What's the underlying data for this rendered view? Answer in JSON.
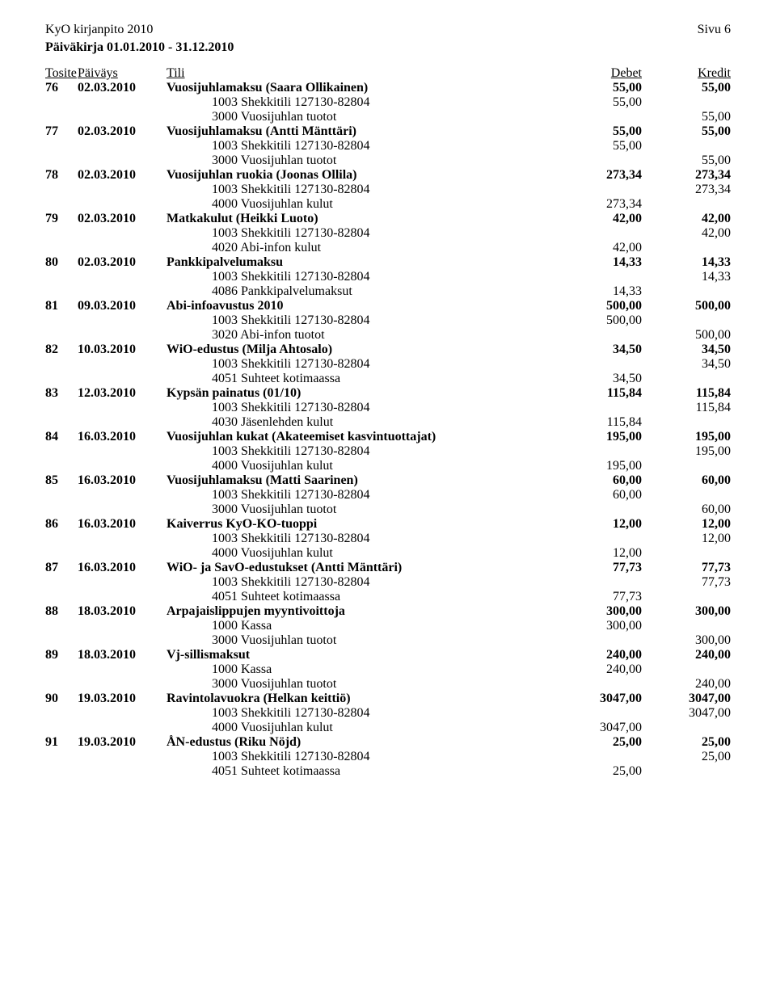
{
  "header": {
    "title_left": "KyO kirjanpito 2010",
    "title_right": "Sivu 6",
    "subtitle": "Päiväkirja 01.01.2010 - 31.12.2010"
  },
  "columns": {
    "tosite": "Tosite",
    "paivays": "Päiväys",
    "tili": "Tili",
    "debet": "Debet",
    "kredit": "Kredit"
  },
  "entries": [
    {
      "num": "76",
      "date": "02.03.2010",
      "desc": "Vuosijuhlamaksu (Saara Ollikainen)",
      "deb": "55,00",
      "cre": "55,00",
      "subs": [
        {
          "desc": "1003 Shekkitili 127130-82804",
          "deb": "55,00",
          "cre": ""
        },
        {
          "desc": "3000 Vuosijuhlan tuotot",
          "deb": "",
          "cre": "55,00"
        }
      ]
    },
    {
      "num": "77",
      "date": "02.03.2010",
      "desc": "Vuosijuhlamaksu (Antti Mänttäri)",
      "deb": "55,00",
      "cre": "55,00",
      "subs": [
        {
          "desc": "1003 Shekkitili 127130-82804",
          "deb": "55,00",
          "cre": ""
        },
        {
          "desc": "3000 Vuosijuhlan tuotot",
          "deb": "",
          "cre": "55,00"
        }
      ]
    },
    {
      "num": "78",
      "date": "02.03.2010",
      "desc": "Vuosijuhlan ruokia (Joonas Ollila)",
      "deb": "273,34",
      "cre": "273,34",
      "subs": [
        {
          "desc": "1003 Shekkitili 127130-82804",
          "deb": "",
          "cre": "273,34"
        },
        {
          "desc": "4000 Vuosijuhlan kulut",
          "deb": "273,34",
          "cre": ""
        }
      ]
    },
    {
      "num": "79",
      "date": "02.03.2010",
      "desc": "Matkakulut (Heikki Luoto)",
      "deb": "42,00",
      "cre": "42,00",
      "subs": [
        {
          "desc": "1003 Shekkitili 127130-82804",
          "deb": "",
          "cre": "42,00"
        },
        {
          "desc": "4020 Abi-infon kulut",
          "deb": "42,00",
          "cre": ""
        }
      ]
    },
    {
      "num": "80",
      "date": "02.03.2010",
      "desc": "Pankkipalvelumaksu",
      "deb": "14,33",
      "cre": "14,33",
      "subs": [
        {
          "desc": "1003 Shekkitili 127130-82804",
          "deb": "",
          "cre": "14,33"
        },
        {
          "desc": "4086 Pankkipalvelumaksut",
          "deb": "14,33",
          "cre": ""
        }
      ]
    },
    {
      "num": "81",
      "date": "09.03.2010",
      "desc": "Abi-infoavustus 2010",
      "deb": "500,00",
      "cre": "500,00",
      "subs": [
        {
          "desc": "1003 Shekkitili 127130-82804",
          "deb": "500,00",
          "cre": ""
        },
        {
          "desc": "3020 Abi-infon tuotot",
          "deb": "",
          "cre": "500,00"
        }
      ]
    },
    {
      "num": "82",
      "date": "10.03.2010",
      "desc": "WiO-edustus (Milja Ahtosalo)",
      "deb": "34,50",
      "cre": "34,50",
      "subs": [
        {
          "desc": "1003 Shekkitili 127130-82804",
          "deb": "",
          "cre": "34,50"
        },
        {
          "desc": "4051 Suhteet kotimaassa",
          "deb": "34,50",
          "cre": ""
        }
      ]
    },
    {
      "num": "83",
      "date": "12.03.2010",
      "desc": "Kypsän painatus (01/10)",
      "deb": "115,84",
      "cre": "115,84",
      "subs": [
        {
          "desc": "1003 Shekkitili 127130-82804",
          "deb": "",
          "cre": "115,84"
        },
        {
          "desc": "4030 Jäsenlehden kulut",
          "deb": "115,84",
          "cre": ""
        }
      ]
    },
    {
      "num": "84",
      "date": "16.03.2010",
      "desc": "Vuosijuhlan kukat (Akateemiset kasvintuottajat)",
      "deb": "195,00",
      "cre": "195,00",
      "subs": [
        {
          "desc": "1003 Shekkitili 127130-82804",
          "deb": "",
          "cre": "195,00"
        },
        {
          "desc": "4000 Vuosijuhlan kulut",
          "deb": "195,00",
          "cre": ""
        }
      ]
    },
    {
      "num": "85",
      "date": "16.03.2010",
      "desc": "Vuosijuhlamaksu (Matti Saarinen)",
      "deb": "60,00",
      "cre": "60,00",
      "subs": [
        {
          "desc": "1003 Shekkitili 127130-82804",
          "deb": "60,00",
          "cre": ""
        },
        {
          "desc": "3000 Vuosijuhlan tuotot",
          "deb": "",
          "cre": "60,00"
        }
      ]
    },
    {
      "num": "86",
      "date": "16.03.2010",
      "desc": "Kaiverrus KyO-KO-tuoppi",
      "deb": "12,00",
      "cre": "12,00",
      "subs": [
        {
          "desc": "1003 Shekkitili 127130-82804",
          "deb": "",
          "cre": "12,00"
        },
        {
          "desc": "4000 Vuosijuhlan kulut",
          "deb": "12,00",
          "cre": ""
        }
      ]
    },
    {
      "num": "87",
      "date": "16.03.2010",
      "desc": "WiO- ja SavO-edustukset (Antti Mänttäri)",
      "deb": "77,73",
      "cre": "77,73",
      "subs": [
        {
          "desc": "1003 Shekkitili 127130-82804",
          "deb": "",
          "cre": "77,73"
        },
        {
          "desc": "4051 Suhteet kotimaassa",
          "deb": "77,73",
          "cre": ""
        }
      ]
    },
    {
      "num": "88",
      "date": "18.03.2010",
      "desc": "Arpajaislippujen myyntivoittoja",
      "deb": "300,00",
      "cre": "300,00",
      "subs": [
        {
          "desc": "1000 Kassa",
          "deb": "300,00",
          "cre": ""
        },
        {
          "desc": "3000 Vuosijuhlan tuotot",
          "deb": "",
          "cre": "300,00"
        }
      ]
    },
    {
      "num": "89",
      "date": "18.03.2010",
      "desc": "Vj-sillismaksut",
      "deb": "240,00",
      "cre": "240,00",
      "subs": [
        {
          "desc": "1000 Kassa",
          "deb": "240,00",
          "cre": ""
        },
        {
          "desc": "3000 Vuosijuhlan tuotot",
          "deb": "",
          "cre": "240,00"
        }
      ]
    },
    {
      "num": "90",
      "date": "19.03.2010",
      "desc": "Ravintolavuokra (Helkan keittiö)",
      "deb": "3047,00",
      "cre": "3047,00",
      "subs": [
        {
          "desc": "1003 Shekkitili 127130-82804",
          "deb": "",
          "cre": "3047,00"
        },
        {
          "desc": "4000 Vuosijuhlan kulut",
          "deb": "3047,00",
          "cre": ""
        }
      ]
    },
    {
      "num": "91",
      "date": "19.03.2010",
      "desc": "ÅN-edustus (Riku Nöjd)",
      "deb": "25,00",
      "cre": "25,00",
      "subs": [
        {
          "desc": "1003 Shekkitili 127130-82804",
          "deb": "",
          "cre": "25,00"
        },
        {
          "desc": "4051 Suhteet kotimaassa",
          "deb": "25,00",
          "cre": ""
        }
      ]
    }
  ]
}
